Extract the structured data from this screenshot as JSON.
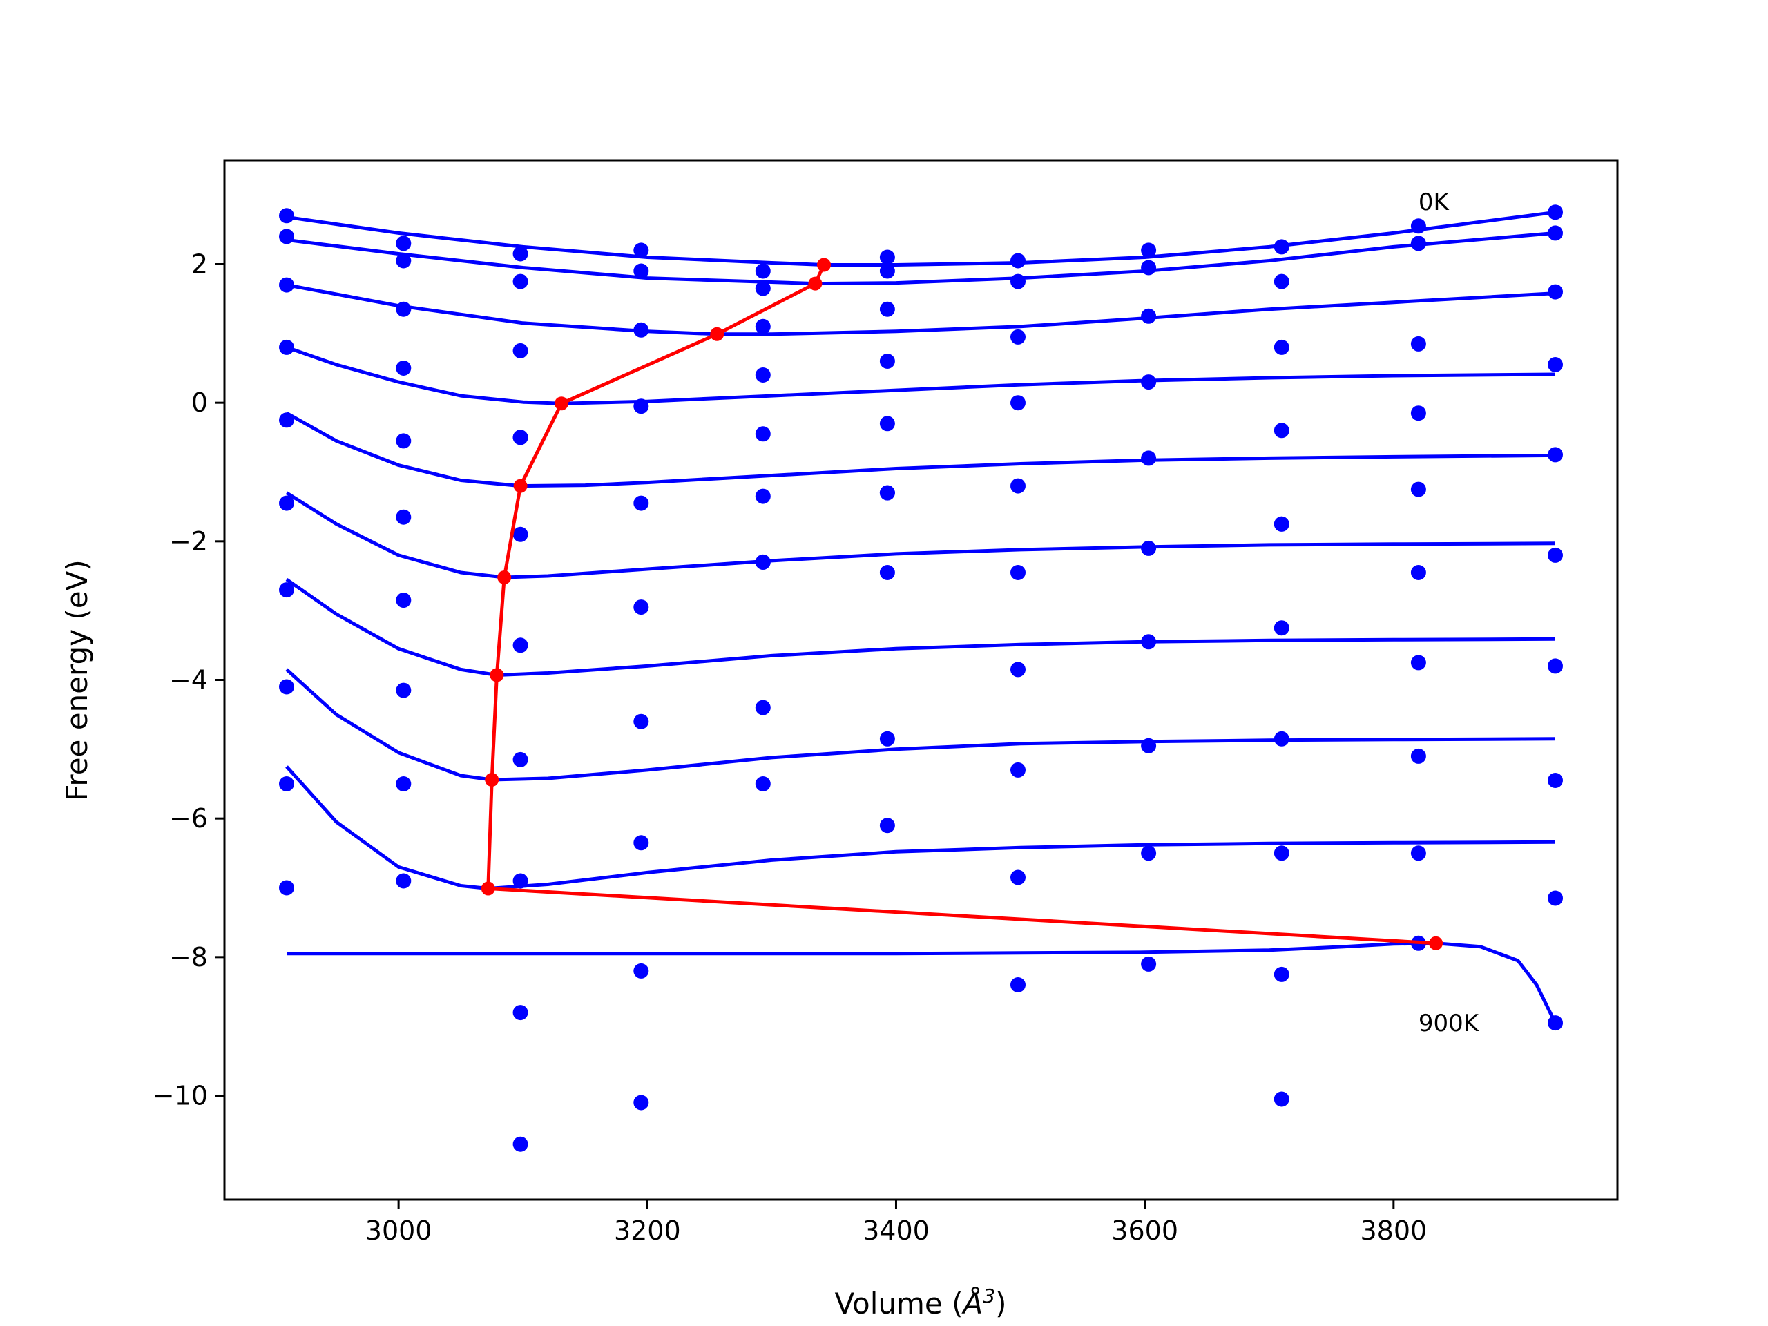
{
  "chart_data": {
    "type": "scatter",
    "title": "",
    "xlabel": "Volume (Å³)",
    "xlabel_parts": {
      "before": "Volume (",
      "symbol": "Å",
      "exp": "3",
      "after": ")"
    },
    "ylabel": "Free energy (eV)",
    "xlim": [
      2860,
      3980
    ],
    "ylim": [
      -11.5,
      3.5
    ],
    "xticks": [
      3000,
      3200,
      3400,
      3600,
      3800
    ],
    "xtick_labels": [
      "3000",
      "3200",
      "3400",
      "3600",
      "3800"
    ],
    "yticks": [
      2,
      0,
      -2,
      -4,
      -6,
      -8,
      -10
    ],
    "ytick_labels": [
      "2",
      "0",
      "−2",
      "−4",
      "−6",
      "−8",
      "−10"
    ],
    "grid": false,
    "colors": {
      "points": "#0000ff",
      "fits": "#0000ff",
      "minima": "#ff0000",
      "axes": "#000000"
    },
    "annotations": [
      {
        "text": "0K",
        "x": 3820,
        "y": 2.9
      },
      {
        "text": "900K",
        "x": 3820,
        "y": -8.95
      }
    ],
    "volumes": [
      2910,
      3004,
      3098,
      3195,
      3293,
      3393,
      3498,
      3603,
      3710,
      3820,
      3930
    ],
    "series": [
      {
        "label": "0K",
        "points": [
          2.7,
          2.3,
          2.15,
          2.2,
          1.9,
          2.1,
          2.05,
          2.2,
          2.25,
          2.55,
          2.75
        ],
        "fit": [
          [
            2910,
            2.68
          ],
          [
            3000,
            2.45
          ],
          [
            3100,
            2.25
          ],
          [
            3200,
            2.1
          ],
          [
            3300,
            2.02
          ],
          [
            3342,
            1.99
          ],
          [
            3400,
            1.99
          ],
          [
            3500,
            2.02
          ],
          [
            3600,
            2.1
          ],
          [
            3700,
            2.25
          ],
          [
            3800,
            2.45
          ],
          [
            3930,
            2.75
          ]
        ]
      },
      {
        "label": "100K",
        "points": [
          2.4,
          2.05,
          1.75,
          1.9,
          1.65,
          1.9,
          1.75,
          1.95,
          1.75,
          2.3,
          2.45
        ],
        "fit": [
          [
            2910,
            2.35
          ],
          [
            3000,
            2.15
          ],
          [
            3100,
            1.95
          ],
          [
            3200,
            1.8
          ],
          [
            3335,
            1.72
          ],
          [
            3400,
            1.73
          ],
          [
            3500,
            1.8
          ],
          [
            3600,
            1.9
          ],
          [
            3700,
            2.05
          ],
          [
            3800,
            2.25
          ],
          [
            3930,
            2.45
          ]
        ]
      },
      {
        "label": "200K",
        "points": [
          1.7,
          1.35,
          0.75,
          1.05,
          1.1,
          1.35,
          0.95,
          1.25,
          0.8,
          0.85,
          1.6
        ],
        "fit": [
          [
            2910,
            1.7
          ],
          [
            3000,
            1.4
          ],
          [
            3100,
            1.15
          ],
          [
            3200,
            1.03
          ],
          [
            3256,
            0.99
          ],
          [
            3300,
            0.99
          ],
          [
            3400,
            1.03
          ],
          [
            3500,
            1.1
          ],
          [
            3600,
            1.22
          ],
          [
            3700,
            1.35
          ],
          [
            3800,
            1.45
          ],
          [
            3930,
            1.58
          ]
        ]
      },
      {
        "label": "300K",
        "points": [
          0.8,
          0.5,
          -0.5,
          -0.05,
          0.4,
          0.6,
          0.0,
          0.3,
          -0.4,
          -0.15,
          0.55
        ],
        "fit": [
          [
            2910,
            0.8
          ],
          [
            2950,
            0.55
          ],
          [
            3000,
            0.3
          ],
          [
            3050,
            0.1
          ],
          [
            3100,
            0.01
          ],
          [
            3131,
            -0.01
          ],
          [
            3200,
            0.02
          ],
          [
            3300,
            0.1
          ],
          [
            3400,
            0.18
          ],
          [
            3500,
            0.26
          ],
          [
            3600,
            0.32
          ],
          [
            3700,
            0.36
          ],
          [
            3800,
            0.39
          ],
          [
            3930,
            0.41
          ]
        ]
      },
      {
        "label": "400K",
        "points": [
          -0.25,
          -0.55,
          -0.5,
          -1.45,
          -0.45,
          -0.3,
          -1.2,
          -0.8,
          -1.75,
          -1.25,
          -0.75
        ],
        "fit": [
          [
            2910,
            -0.15
          ],
          [
            2950,
            -0.55
          ],
          [
            3000,
            -0.9
          ],
          [
            3050,
            -1.12
          ],
          [
            3098,
            -1.2
          ],
          [
            3150,
            -1.19
          ],
          [
            3200,
            -1.15
          ],
          [
            3300,
            -1.05
          ],
          [
            3400,
            -0.95
          ],
          [
            3500,
            -0.88
          ],
          [
            3600,
            -0.83
          ],
          [
            3700,
            -0.8
          ],
          [
            3800,
            -0.78
          ],
          [
            3930,
            -0.76
          ]
        ]
      },
      {
        "label": "500K",
        "points": [
          -1.45,
          -1.65,
          -1.9,
          -2.95,
          -1.35,
          -1.3,
          -2.45,
          -2.1,
          -3.25,
          -2.45,
          -2.2
        ],
        "fit": [
          [
            2910,
            -1.3
          ],
          [
            2950,
            -1.75
          ],
          [
            3000,
            -2.2
          ],
          [
            3050,
            -2.45
          ],
          [
            3085,
            -2.52
          ],
          [
            3120,
            -2.5
          ],
          [
            3200,
            -2.4
          ],
          [
            3300,
            -2.28
          ],
          [
            3400,
            -2.18
          ],
          [
            3500,
            -2.12
          ],
          [
            3600,
            -2.08
          ],
          [
            3700,
            -2.05
          ],
          [
            3800,
            -2.04
          ],
          [
            3930,
            -2.03
          ]
        ]
      },
      {
        "label": "600K",
        "points": [
          -2.7,
          -2.85,
          -3.5,
          -4.6,
          -2.3,
          -2.45,
          -3.85,
          -3.45,
          -1.75,
          -3.75,
          -3.8
        ],
        "fit": [
          [
            2910,
            -2.55
          ],
          [
            2950,
            -3.05
          ],
          [
            3000,
            -3.55
          ],
          [
            3050,
            -3.85
          ],
          [
            3079,
            -3.93
          ],
          [
            3120,
            -3.9
          ],
          [
            3200,
            -3.8
          ],
          [
            3300,
            -3.65
          ],
          [
            3400,
            -3.55
          ],
          [
            3500,
            -3.49
          ],
          [
            3600,
            -3.45
          ],
          [
            3700,
            -3.43
          ],
          [
            3800,
            -3.42
          ],
          [
            3930,
            -3.41
          ]
        ]
      },
      {
        "label": "700K",
        "points": [
          -4.1,
          -4.15,
          -5.15,
          -6.35,
          -4.4,
          -4.85,
          -5.3,
          -4.95,
          -4.85,
          -5.1,
          -5.45
        ],
        "fit": [
          [
            2910,
            -3.85
          ],
          [
            2950,
            -4.5
          ],
          [
            3000,
            -5.05
          ],
          [
            3050,
            -5.38
          ],
          [
            3075,
            -5.44
          ],
          [
            3120,
            -5.42
          ],
          [
            3200,
            -5.3
          ],
          [
            3300,
            -5.12
          ],
          [
            3400,
            -5.0
          ],
          [
            3500,
            -4.92
          ],
          [
            3600,
            -4.89
          ],
          [
            3700,
            -4.87
          ],
          [
            3800,
            -4.86
          ],
          [
            3930,
            -4.85
          ]
        ]
      },
      {
        "label": "800K",
        "points": [
          -5.5,
          -5.5,
          -6.9,
          -10.1,
          -5.5,
          -6.1,
          -6.85,
          -6.5,
          -6.5,
          -6.5,
          -7.15
        ],
        "fit": [
          [
            2910,
            -5.25
          ],
          [
            2950,
            -6.05
          ],
          [
            3000,
            -6.7
          ],
          [
            3050,
            -6.97
          ],
          [
            3072,
            -7.01
          ],
          [
            3120,
            -6.95
          ],
          [
            3200,
            -6.78
          ],
          [
            3300,
            -6.6
          ],
          [
            3400,
            -6.48
          ],
          [
            3500,
            -6.42
          ],
          [
            3600,
            -6.38
          ],
          [
            3700,
            -6.36
          ],
          [
            3800,
            -6.35
          ],
          [
            3930,
            -6.34
          ]
        ]
      },
      {
        "label": "900K",
        "points": [
          -7.0,
          -6.9,
          -8.8,
          -8.2,
          -2.3,
          -1.3,
          -8.4,
          -8.1,
          -8.25,
          -7.8,
          -8.95
        ],
        "fit": [
          [
            2910,
            -7.95
          ],
          [
            3000,
            -7.95
          ],
          [
            3100,
            -7.95
          ],
          [
            3200,
            -7.95
          ],
          [
            3300,
            -7.95
          ],
          [
            3400,
            -7.95
          ],
          [
            3500,
            -7.94
          ],
          [
            3600,
            -7.93
          ],
          [
            3700,
            -7.9
          ],
          [
            3760,
            -7.85
          ],
          [
            3800,
            -7.81
          ],
          [
            3834,
            -7.8
          ],
          [
            3870,
            -7.85
          ],
          [
            3900,
            -8.05
          ],
          [
            3915,
            -8.4
          ],
          [
            3930,
            -8.95
          ]
        ]
      }
    ],
    "extra_points": [
      {
        "x": 3098,
        "y": -10.7
      },
      {
        "x": 3710,
        "y": -10.05
      }
    ],
    "minima": {
      "x": [
        3342,
        3335,
        3256,
        3131,
        3098,
        3085,
        3079,
        3075,
        3072,
        3834
      ],
      "y": [
        1.99,
        1.72,
        0.99,
        -0.01,
        -1.2,
        -2.52,
        -3.93,
        -5.44,
        -7.01,
        -7.8
      ]
    }
  }
}
